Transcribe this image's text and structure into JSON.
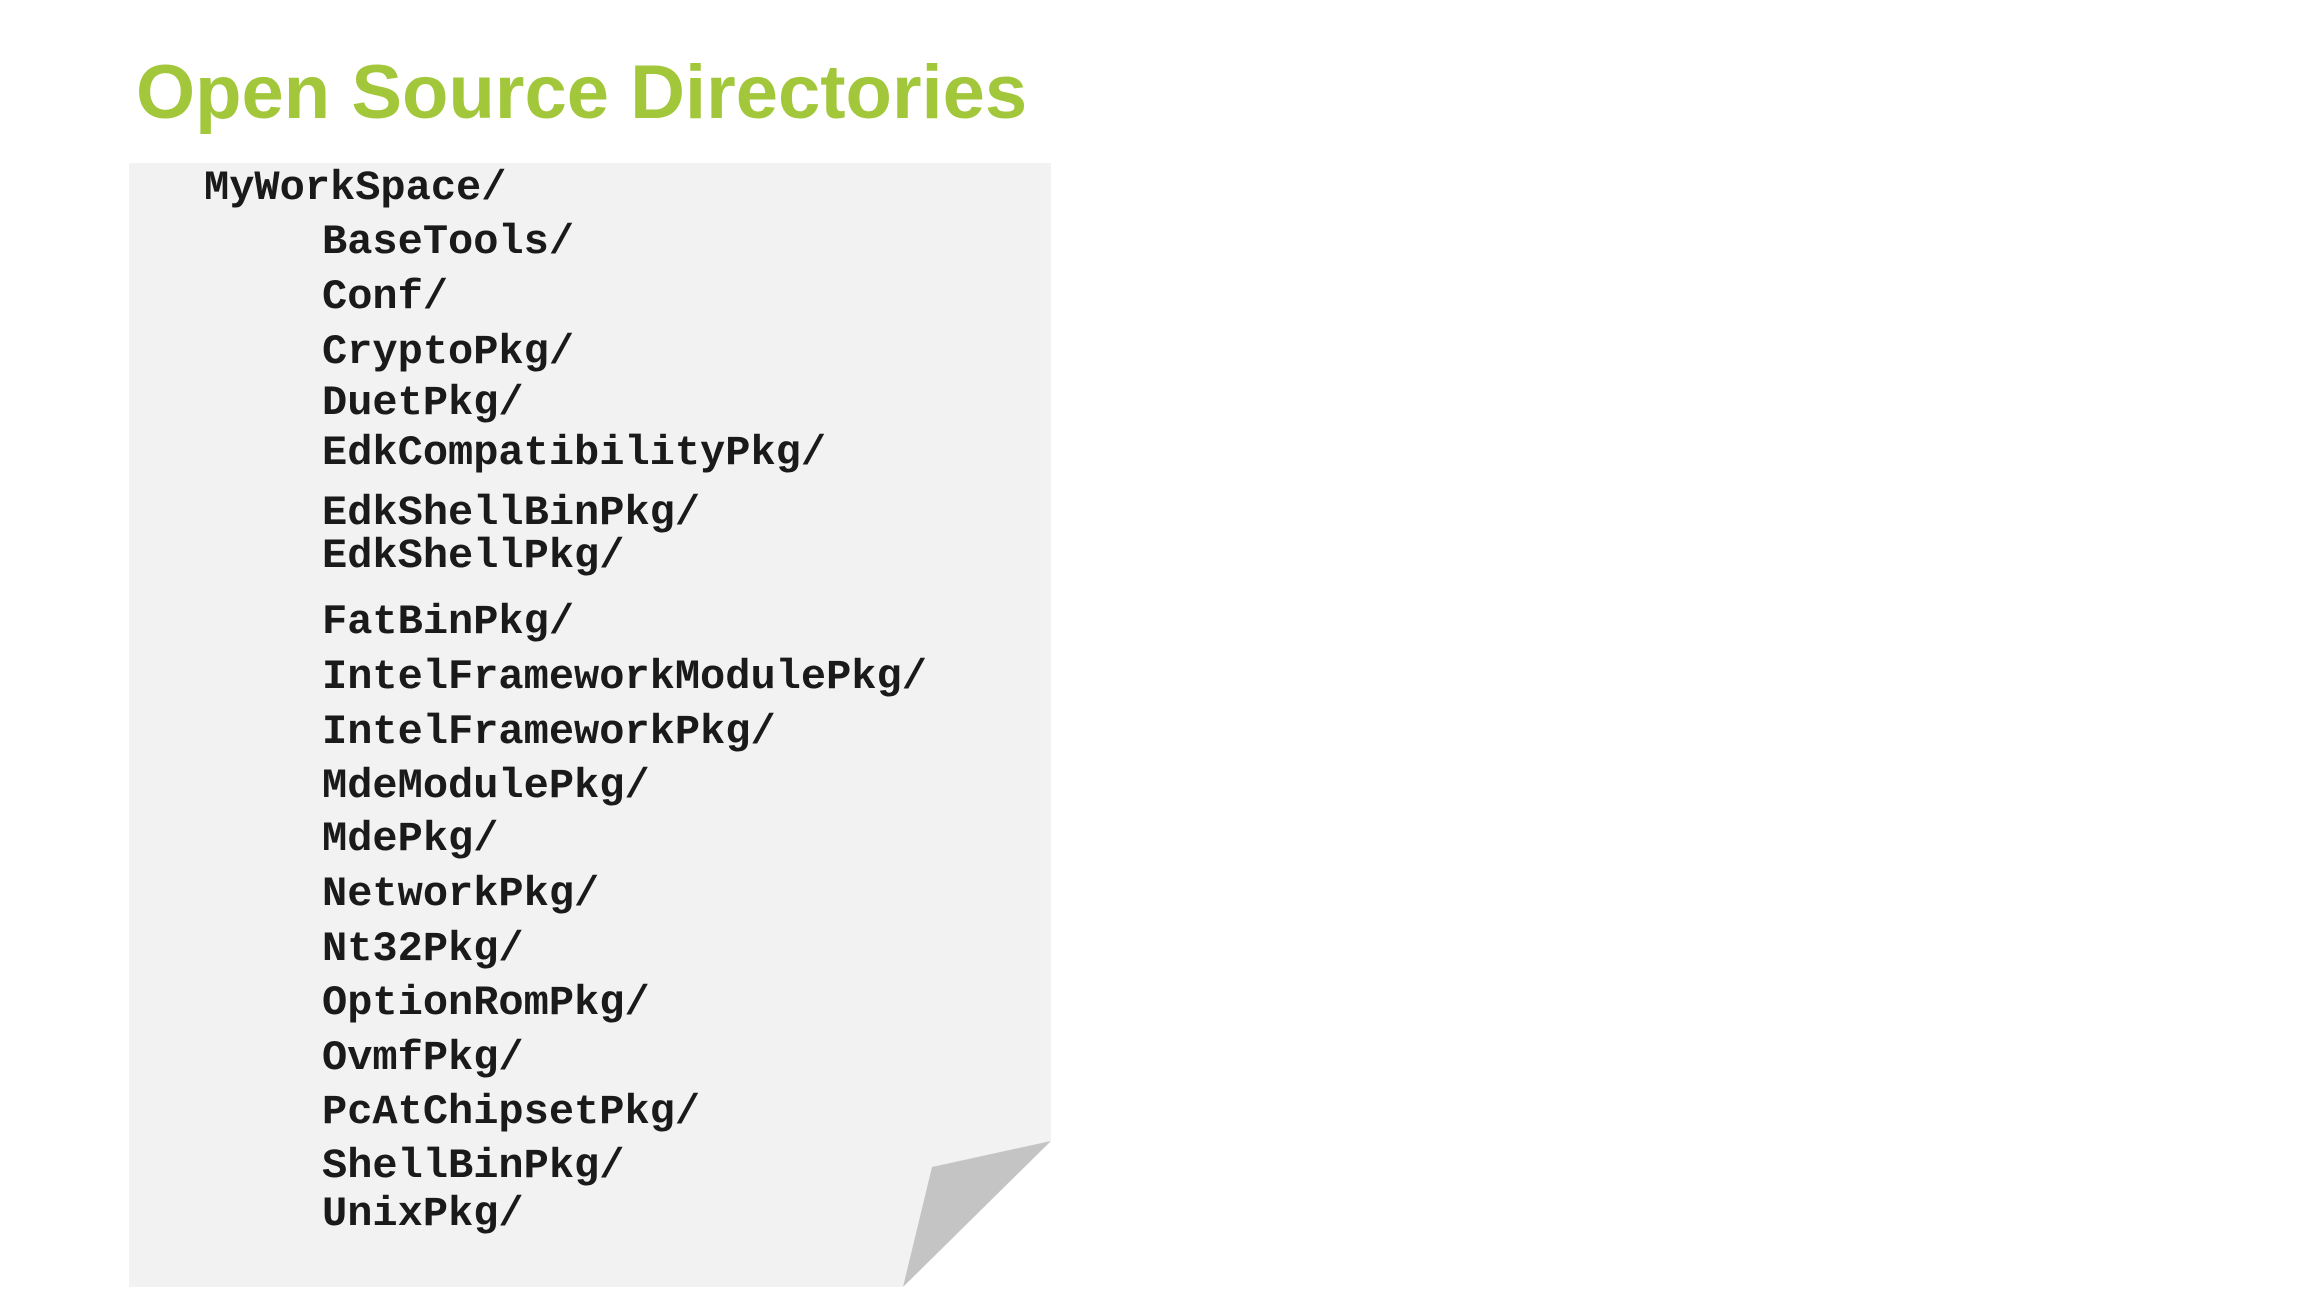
{
  "slide": {
    "title": "Open Source Directories"
  },
  "listing": {
    "root": "MyWorkSpace/",
    "children": [
      "BaseTools/",
      "Conf/",
      "CryptoPkg/",
      "DuetPkg/",
      "EdkCompatibilityPkg/",
      "EdkShellBinPkg/",
      "EdkShellPkg/",
      "FatBinPkg/",
      "IntelFrameworkModulePkg/",
      "IntelFrameworkPkg/",
      "MdeModulePkg/",
      "MdePkg/",
      "NetworkPkg/",
      "Nt32Pkg/",
      "OptionRomPkg/",
      "OvmfPkg/",
      "PcAtChipsetPkg/",
      "ShellBinPkg/",
      "UnixPkg/"
    ]
  },
  "colors": {
    "title": "#a2c73b",
    "page_background": "#f2f2f2",
    "page_curl": "#c4c4c4",
    "text": "#1a1a1a"
  }
}
